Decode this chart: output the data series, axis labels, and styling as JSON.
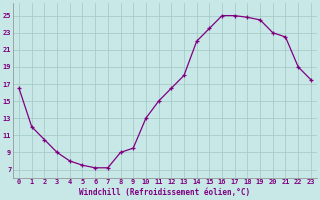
{
  "x": [
    0,
    1,
    2,
    3,
    4,
    5,
    6,
    7,
    8,
    9,
    10,
    11,
    12,
    13,
    14,
    15,
    16,
    17,
    18,
    19,
    20,
    21,
    22,
    23
  ],
  "y": [
    16.5,
    12.0,
    10.5,
    9.0,
    8.0,
    7.5,
    7.2,
    7.2,
    9.0,
    9.5,
    13.0,
    15.0,
    16.5,
    18.0,
    22.0,
    23.5,
    25.0,
    25.0,
    24.8,
    24.5,
    23.0,
    22.5,
    19.0,
    17.5
  ],
  "line_color": "#800080",
  "marker": "+",
  "bg_color": "#c8e8e8",
  "grid_color": "#a0c8c0",
  "xlabel": "Windchill (Refroidissement éolien,°C)",
  "ylabel": "",
  "yticks": [
    7,
    9,
    11,
    13,
    15,
    17,
    19,
    21,
    23,
    25
  ],
  "xticks": [
    0,
    1,
    2,
    3,
    4,
    5,
    6,
    7,
    8,
    9,
    10,
    11,
    12,
    13,
    14,
    15,
    16,
    17,
    18,
    19,
    20,
    21,
    22,
    23
  ],
  "ylim": [
    6.0,
    26.5
  ],
  "xlim": [
    -0.5,
    23.5
  ],
  "label_fontsize": 5.5,
  "tick_fontsize": 5.0
}
